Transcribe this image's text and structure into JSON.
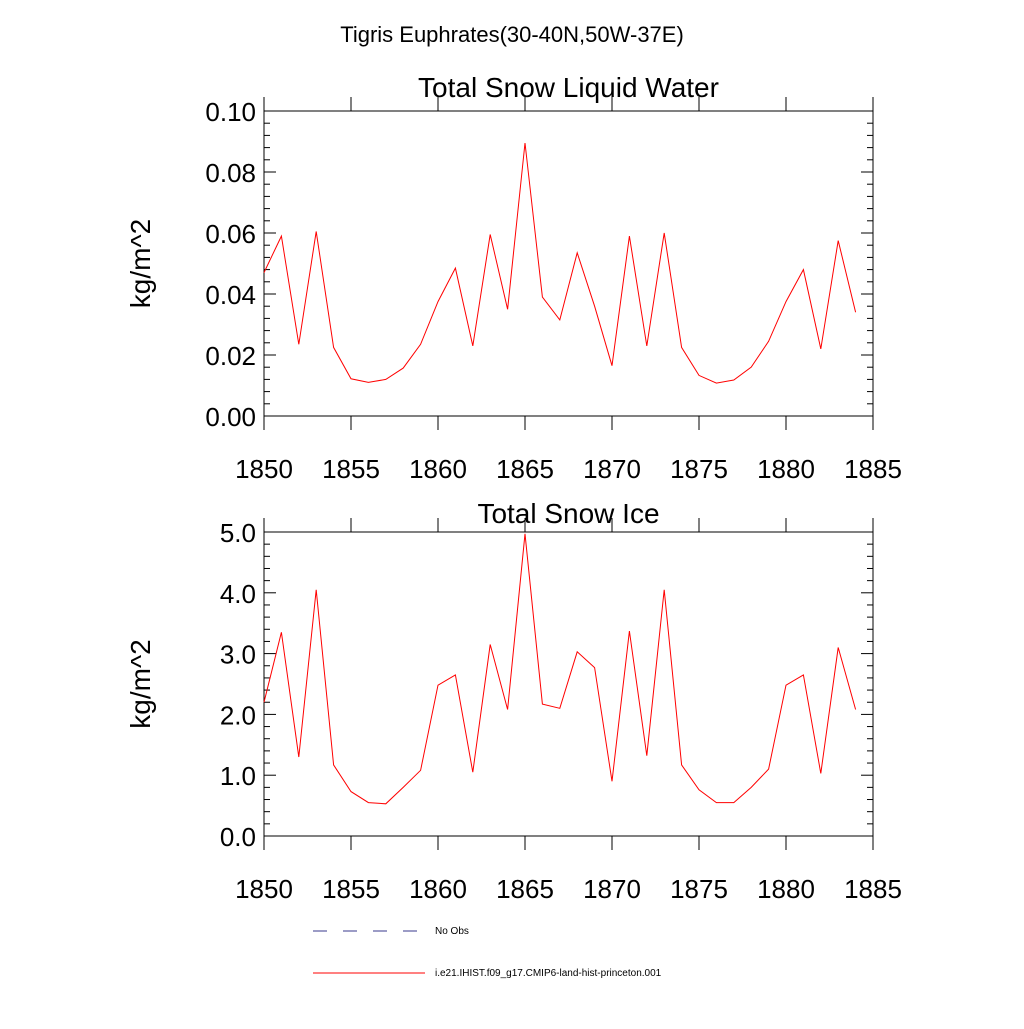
{
  "figure_title": "Tigris Euphrates(30-40N,50W-37E)",
  "legend": {
    "entries": [
      {
        "label": "No Obs",
        "color": "#3a3a8c",
        "style": "dashed"
      },
      {
        "label": "i.e21.IHIST.f09_g17.CMIP6-land-hist-princeton.001",
        "color": "#ff0000",
        "style": "solid"
      }
    ]
  },
  "chart_data": [
    {
      "type": "line",
      "title": "Total Snow Liquid Water",
      "xlabel": "",
      "ylabel": "kg/m^2",
      "xlim": [
        1850,
        1885
      ],
      "ylim": [
        0,
        0.1
      ],
      "x_ticks": [
        "1850",
        "1855",
        "1860",
        "1865",
        "1870",
        "1875",
        "1880",
        "1885"
      ],
      "y_ticks": [
        "0.00",
        "0.02",
        "0.04",
        "0.06",
        "0.08",
        "0.10"
      ],
      "grid": false,
      "x": [
        1850,
        1851,
        1852,
        1853,
        1854,
        1855,
        1856,
        1857,
        1858,
        1859,
        1860,
        1861,
        1862,
        1863,
        1864,
        1865,
        1866,
        1867,
        1868,
        1869,
        1870,
        1871,
        1872,
        1873,
        1874,
        1875,
        1876,
        1877,
        1878,
        1879,
        1880,
        1881,
        1882,
        1883,
        1884
      ],
      "series": [
        {
          "color": "#ff0000",
          "values": [
            0.047,
            0.059,
            0.0235,
            0.0605,
            0.0225,
            0.0122,
            0.011,
            0.012,
            0.0157,
            0.0235,
            0.0375,
            0.0485,
            0.023,
            0.0595,
            0.035,
            0.0895,
            0.039,
            0.0315,
            0.0535,
            0.036,
            0.0165,
            0.059,
            0.023,
            0.06,
            0.0225,
            0.0133,
            0.0108,
            0.0118,
            0.016,
            0.0245,
            0.0375,
            0.048,
            0.022,
            0.0575,
            0.034
          ]
        }
      ]
    },
    {
      "type": "line",
      "title": "Total Snow Ice",
      "xlabel": "",
      "ylabel": "kg/m^2",
      "xlim": [
        1850,
        1885
      ],
      "ylim": [
        0,
        5
      ],
      "x_ticks": [
        "1850",
        "1855",
        "1860",
        "1865",
        "1870",
        "1875",
        "1880",
        "1885"
      ],
      "y_ticks": [
        "0.0",
        "1.0",
        "2.0",
        "3.0",
        "4.0",
        "5.0"
      ],
      "grid": false,
      "x": [
        1850,
        1851,
        1852,
        1853,
        1854,
        1855,
        1856,
        1857,
        1858,
        1859,
        1860,
        1861,
        1862,
        1863,
        1864,
        1865,
        1866,
        1867,
        1868,
        1869,
        1870,
        1871,
        1872,
        1873,
        1874,
        1875,
        1876,
        1877,
        1878,
        1879,
        1880,
        1881,
        1882,
        1883,
        1884
      ],
      "series": [
        {
          "color": "#ff0000",
          "values": [
            2.2,
            3.35,
            1.3,
            4.05,
            1.17,
            0.73,
            0.55,
            0.53,
            0.8,
            1.08,
            2.48,
            2.65,
            1.05,
            3.15,
            2.08,
            4.97,
            2.17,
            2.1,
            3.03,
            2.77,
            0.9,
            3.37,
            1.32,
            4.05,
            1.17,
            0.76,
            0.55,
            0.55,
            0.8,
            1.1,
            2.48,
            2.65,
            1.03,
            3.1,
            2.08
          ]
        }
      ]
    }
  ]
}
